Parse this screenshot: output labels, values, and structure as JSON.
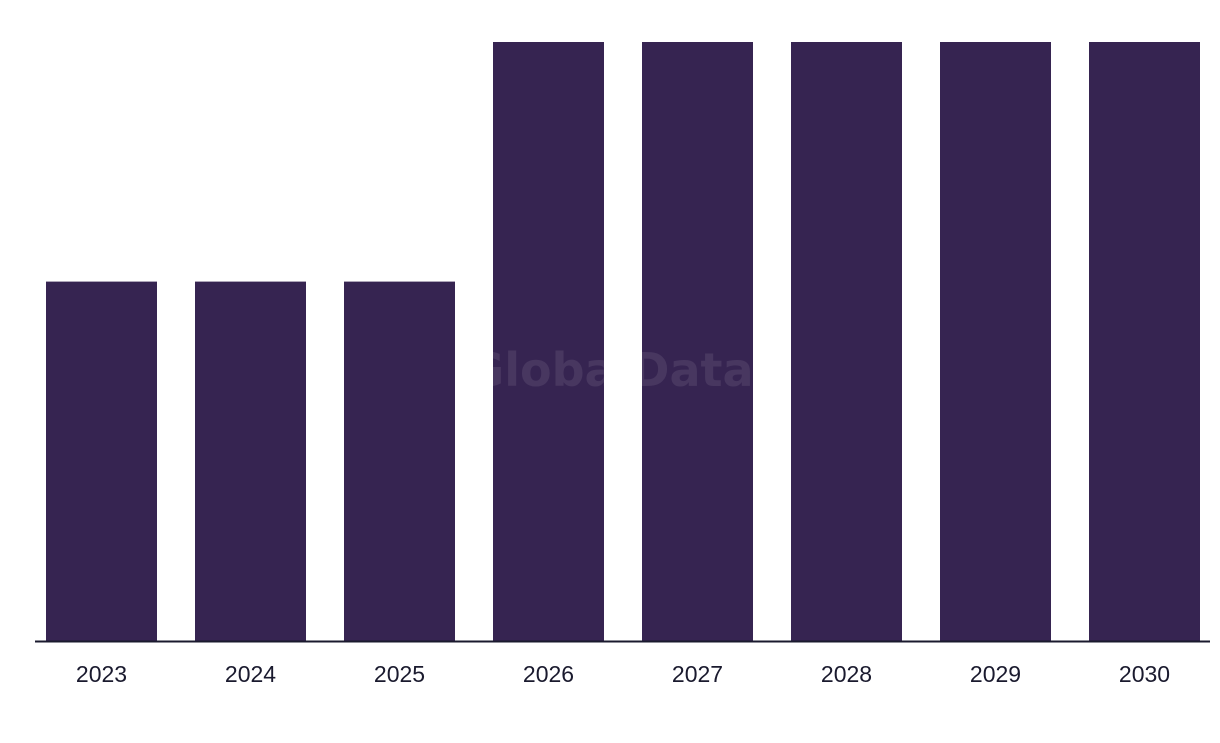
{
  "chart_data": {
    "type": "bar",
    "categories": [
      "2023",
      "2024",
      "2025",
      "2026",
      "2027",
      "2028",
      "2029",
      "2030"
    ],
    "values": [
      3,
      3,
      3,
      5,
      5,
      5,
      5,
      5
    ],
    "title": "",
    "xlabel": "",
    "ylabel": "",
    "ylim": [
      0,
      5
    ],
    "grid": false,
    "legend": "none",
    "y_axis_visible": false
  },
  "watermark": "GlobalData",
  "colors": {
    "bar": "#362451",
    "axis": "#1a1a2e",
    "tick_label": "#1a1a2e",
    "watermark": "#ffffff",
    "background": "#ffffff"
  }
}
